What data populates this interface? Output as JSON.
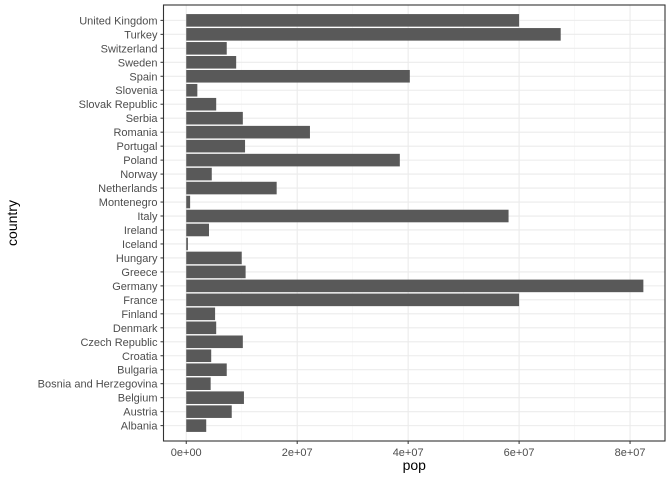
{
  "chart_data": {
    "type": "bar",
    "orientation": "horizontal",
    "xlabel": "pop",
    "ylabel": "country",
    "xlim": [
      -4100000,
      86300000
    ],
    "x_ticks": [
      0,
      20000000,
      40000000,
      60000000,
      80000000
    ],
    "x_tick_labels": [
      "0e+00",
      "2e+07",
      "4e+07",
      "6e+07",
      "8e+07"
    ],
    "grid": true,
    "categories": [
      "United Kingdom",
      "Turkey",
      "Switzerland",
      "Sweden",
      "Spain",
      "Slovenia",
      "Slovak Republic",
      "Serbia",
      "Romania",
      "Portugal",
      "Poland",
      "Norway",
      "Netherlands",
      "Montenegro",
      "Italy",
      "Ireland",
      "Iceland",
      "Hungary",
      "Greece",
      "Germany",
      "France",
      "Finland",
      "Denmark",
      "Czech Republic",
      "Croatia",
      "Bulgaria",
      "Bosnia and Herzegovina",
      "Belgium",
      "Austria",
      "Albania"
    ],
    "values": [
      60000000,
      67500000,
      7300000,
      9000000,
      40300000,
      2000000,
      5400000,
      10200000,
      22300000,
      10600000,
      38500000,
      4600000,
      16300000,
      700000,
      58100000,
      4100000,
      300000,
      10000000,
      10700000,
      82400000,
      60000000,
      5200000,
      5400000,
      10200000,
      4500000,
      7300000,
      4400000,
      10400000,
      8200000,
      3600000
    ]
  },
  "colors": {
    "panel_background": "#ffffff",
    "panel_border": "#333333",
    "grid_major": "#ebebeb",
    "grid_minor": "#f5f5f5",
    "bar_fill": "#595959"
  }
}
